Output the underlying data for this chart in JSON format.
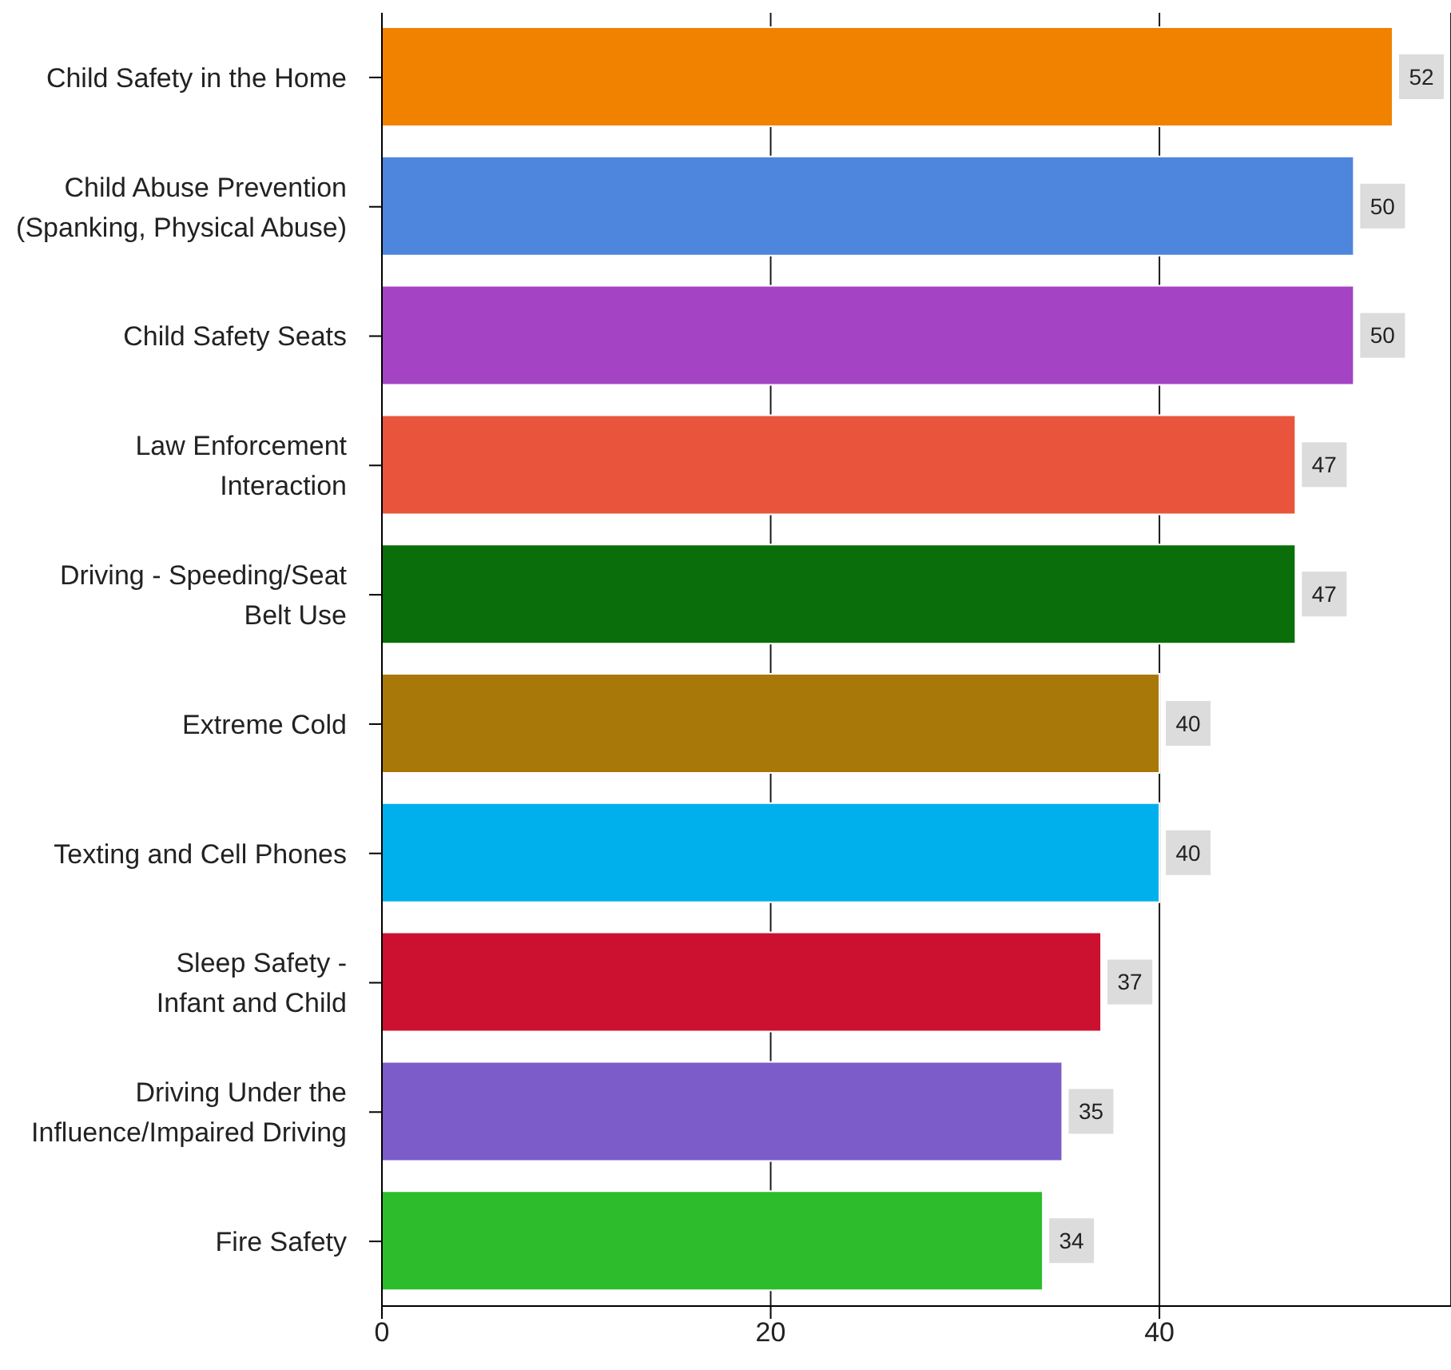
{
  "chart_data": {
    "type": "bar",
    "orientation": "horizontal",
    "categories": [
      "Child Safety in the Home",
      "Child Abuse Prevention\n(Spanking, Physical Abuse)",
      "Child Safety Seats",
      "Law Enforcement\nInteraction",
      "Driving - Speeding/Seat\nBelt Use",
      "Extreme Cold",
      "Texting and Cell Phones",
      "Sleep Safety -\nInfant and Child",
      "Driving Under the\nInfluence/Impaired Driving",
      "Fire Safety"
    ],
    "values": [
      52,
      50,
      50,
      47,
      47,
      40,
      40,
      37,
      35,
      34
    ],
    "colors": [
      "#f08200",
      "#4f86dd",
      "#a444c4",
      "#e8553c",
      "#0a6e0a",
      "#a87808",
      "#00b0ec",
      "#cc1030",
      "#7c5cc8",
      "#2cbc2c"
    ],
    "xlim": [
      0,
      55
    ],
    "xticks": [
      0,
      20,
      40
    ],
    "grid": "x",
    "data_labels": true
  }
}
